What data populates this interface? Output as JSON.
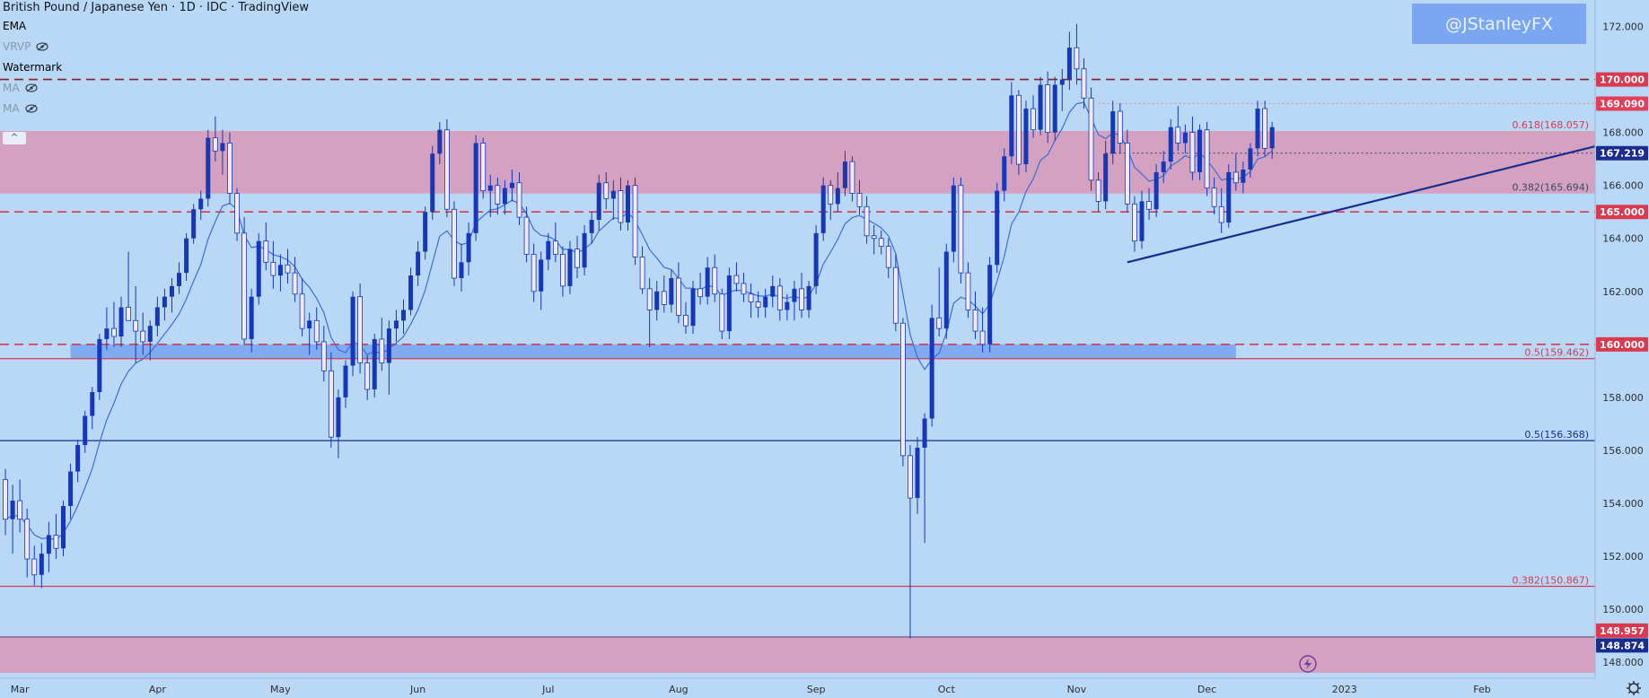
{
  "header": {
    "title": "British Pound / Japanese Yen · 1D · IDC · TradingView",
    "indicators": [
      {
        "label": "EMA",
        "dim": false,
        "hidden": false
      },
      {
        "label": "VRVP",
        "dim": true,
        "hidden": true
      },
      {
        "label": "Watermark",
        "dim": false,
        "hidden": false
      },
      {
        "label": "MA",
        "dim": true,
        "hidden": true
      },
      {
        "label": "MA",
        "dim": true,
        "hidden": true
      }
    ],
    "collapse_glyph": "^"
  },
  "watermark": "@JStanleyFX",
  "colors": {
    "background": "#b9d8f5",
    "bull_candle": "#1537b8",
    "bear_candle": "#f4eaf7",
    "zone_pink": "#d59fbd",
    "zone_blue": "#7aa6f2",
    "ema": "#3a6fd6",
    "trendline": "#1a2d8f",
    "dash_red": "#d93a4f",
    "price_label_red": "#e2405a",
    "price_label_navy": "#1a2d8f"
  },
  "chart_data": {
    "type": "candlestick",
    "symbol": "British Pound / Japanese Yen",
    "timeframe": "1D",
    "ylim": [
      147.6,
      173.0
    ],
    "xlim": [
      0,
      220
    ],
    "y_ticks": [
      "148.000",
      "150.000",
      "152.000",
      "154.000",
      "156.000",
      "158.000",
      "160.000",
      "162.000",
      "164.000",
      "166.000",
      "168.000",
      "170.000",
      "172.000"
    ],
    "x_ticks": [
      {
        "label": "Mar",
        "x": 2
      },
      {
        "label": "Apr",
        "x": 21
      },
      {
        "label": "May",
        "x": 38
      },
      {
        "label": "Jun",
        "x": 57
      },
      {
        "label": "Jul",
        "x": 75
      },
      {
        "label": "Aug",
        "x": 93
      },
      {
        "label": "Sep",
        "x": 112
      },
      {
        "label": "Oct",
        "x": 130
      },
      {
        "label": "Nov",
        "x": 148
      },
      {
        "label": "Dec",
        "x": 166
      },
      {
        "label": "2023",
        "x": 185
      },
      {
        "label": "Feb",
        "x": 204
      }
    ],
    "zones": [
      {
        "from": 165.694,
        "to": 168.057,
        "color": "zone_pink"
      },
      {
        "from": 159.462,
        "to": 160.0,
        "x_start": 9,
        "x_end": 170,
        "color": "zone_blue"
      },
      {
        "from": 147.6,
        "to": 148.957,
        "color": "zone_pink"
      }
    ],
    "horizontal_lines": [
      {
        "price": 170.0,
        "style": "dashed",
        "color": "#8b1e2c"
      },
      {
        "price": 165.0,
        "style": "dashed",
        "color": "#d93a4f"
      },
      {
        "price": 160.0,
        "style": "dashed",
        "color": "#d93a4f"
      },
      {
        "price": 169.09,
        "style": "dotted",
        "color": "#d98fa3",
        "x_start": 151
      },
      {
        "price": 167.219,
        "style": "dotted",
        "color": "#4a4a6a",
        "x_start": 152
      },
      {
        "price": 159.462,
        "style": "solid",
        "color": "#d93a4f"
      },
      {
        "price": 156.368,
        "style": "solid",
        "color": "#1a2d8f"
      },
      {
        "price": 150.867,
        "style": "solid",
        "color": "#d93a4f"
      },
      {
        "price": 148.957,
        "style": "solid",
        "color": "#6a4a80"
      }
    ],
    "fib_labels": [
      {
        "text": "0.618(168.057)",
        "price": 168.057,
        "color": "#d93a4f"
      },
      {
        "text": "0.382(165.694)",
        "price": 165.694,
        "color": "#3a4a6a"
      },
      {
        "text": "0.5(159.462)",
        "price": 159.462,
        "color": "#d93a4f"
      },
      {
        "text": "0.5(156.368)",
        "price": 156.368,
        "color": "#1a2d8f"
      },
      {
        "text": "0.382(150.867)",
        "price": 150.867,
        "color": "#d93a4f"
      }
    ],
    "price_labels": [
      {
        "text": "170.000",
        "price": 170.0,
        "bg": "#d93a4f"
      },
      {
        "text": "169.090",
        "price": 169.09,
        "bg": "#e2405a"
      },
      {
        "text": "167.219",
        "price": 167.219,
        "bg": "#1a2d8f"
      },
      {
        "text": "165.000",
        "price": 165.0,
        "bg": "#d93a4f"
      },
      {
        "text": "160.000",
        "price": 160.0,
        "bg": "#d93a4f"
      },
      {
        "text": "148.957",
        "price": 148.957,
        "bg": "#d93a4f"
      },
      {
        "text": "148.874",
        "price": 148.874,
        "bg": "#1a2d8f"
      }
    ],
    "trendline": {
      "x1": 155,
      "y1": 163.1,
      "x2": 220,
      "y2": 167.5
    },
    "ema_period": 9,
    "candles": [
      [
        154.9,
        155.3,
        152.8,
        153.4
      ],
      [
        153.4,
        154.7,
        152.1,
        154.1
      ],
      [
        154.1,
        154.9,
        152.9,
        153.4
      ],
      [
        153.4,
        153.8,
        151.2,
        151.9
      ],
      [
        151.9,
        152.4,
        150.9,
        151.3
      ],
      [
        151.3,
        152.5,
        150.8,
        152.1
      ],
      [
        152.1,
        153.3,
        151.4,
        152.8
      ],
      [
        152.8,
        153.6,
        151.9,
        152.3
      ],
      [
        152.3,
        154.1,
        152.0,
        153.9
      ],
      [
        153.9,
        155.5,
        153.4,
        155.2
      ],
      [
        155.2,
        156.4,
        154.8,
        156.2
      ],
      [
        156.2,
        157.5,
        155.9,
        157.3
      ],
      [
        157.3,
        158.4,
        156.8,
        158.2
      ],
      [
        158.2,
        160.4,
        157.9,
        160.2
      ],
      [
        160.2,
        161.4,
        159.8,
        160.6
      ],
      [
        160.6,
        161.6,
        159.9,
        160.3
      ],
      [
        160.3,
        161.8,
        159.9,
        161.4
      ],
      [
        161.4,
        163.5,
        160.9,
        160.9
      ],
      [
        160.9,
        162.2,
        159.3,
        160.5
      ],
      [
        160.5,
        161.2,
        159.6,
        160.1
      ],
      [
        160.1,
        160.9,
        159.4,
        160.7
      ],
      [
        160.7,
        161.8,
        160.3,
        161.4
      ],
      [
        161.4,
        162.1,
        160.9,
        161.8
      ],
      [
        161.8,
        162.5,
        161.2,
        162.2
      ],
      [
        162.2,
        163.1,
        161.9,
        162.7
      ],
      [
        162.7,
        164.2,
        162.4,
        164.0
      ],
      [
        164.0,
        165.3,
        163.8,
        165.1
      ],
      [
        165.1,
        165.8,
        164.7,
        165.5
      ],
      [
        165.5,
        168.1,
        165.2,
        167.8
      ],
      [
        167.8,
        168.6,
        166.9,
        167.3
      ],
      [
        167.3,
        168.1,
        166.4,
        167.6
      ],
      [
        167.6,
        168.0,
        165.3,
        165.7
      ],
      [
        165.7,
        165.9,
        163.9,
        164.2
      ],
      [
        164.2,
        164.8,
        160.0,
        160.2
      ],
      [
        160.2,
        162.1,
        159.7,
        161.8
      ],
      [
        161.8,
        164.2,
        161.5,
        163.9
      ],
      [
        163.9,
        164.6,
        162.8,
        163.1
      ],
      [
        163.1,
        163.9,
        162.1,
        162.6
      ],
      [
        162.6,
        163.4,
        162.0,
        163.0
      ],
      [
        163.0,
        163.6,
        162.3,
        162.7
      ],
      [
        162.7,
        163.3,
        161.6,
        161.9
      ],
      [
        161.9,
        162.5,
        160.3,
        160.6
      ],
      [
        160.6,
        161.2,
        159.6,
        160.9
      ],
      [
        160.9,
        161.4,
        159.8,
        160.1
      ],
      [
        160.1,
        160.7,
        158.6,
        159.0
      ],
      [
        159.0,
        159.7,
        156.1,
        156.5
      ],
      [
        156.5,
        158.3,
        155.7,
        158.0
      ],
      [
        158.0,
        159.4,
        157.6,
        159.2
      ],
      [
        159.2,
        162.0,
        158.8,
        161.8
      ],
      [
        161.8,
        162.3,
        158.9,
        159.3
      ],
      [
        159.3,
        159.6,
        157.9,
        158.3
      ],
      [
        158.3,
        160.4,
        158.0,
        160.2
      ],
      [
        160.2,
        161.0,
        159.0,
        159.3
      ],
      [
        159.3,
        160.9,
        158.1,
        160.6
      ],
      [
        160.6,
        161.3,
        160.1,
        160.9
      ],
      [
        160.9,
        161.7,
        160.4,
        161.3
      ],
      [
        161.3,
        162.9,
        161.1,
        162.6
      ],
      [
        162.6,
        163.9,
        162.2,
        163.5
      ],
      [
        163.5,
        165.2,
        163.2,
        165.0
      ],
      [
        165.0,
        167.5,
        164.7,
        167.2
      ],
      [
        167.2,
        168.4,
        166.8,
        168.1
      ],
      [
        168.1,
        168.5,
        164.8,
        165.1
      ],
      [
        165.1,
        165.4,
        162.2,
        162.5
      ],
      [
        162.5,
        163.8,
        162.0,
        163.1
      ],
      [
        163.1,
        164.6,
        162.6,
        164.2
      ],
      [
        164.2,
        167.9,
        163.9,
        167.6
      ],
      [
        167.6,
        167.8,
        165.5,
        165.8
      ],
      [
        165.8,
        166.4,
        164.8,
        166.0
      ],
      [
        166.0,
        166.3,
        164.9,
        165.3
      ],
      [
        165.3,
        166.2,
        164.9,
        165.9
      ],
      [
        165.9,
        166.6,
        165.4,
        166.1
      ],
      [
        166.1,
        166.5,
        164.5,
        164.8
      ],
      [
        164.8,
        165.2,
        163.1,
        163.4
      ],
      [
        163.4,
        163.8,
        161.6,
        162.0
      ],
      [
        162.0,
        163.5,
        161.3,
        163.2
      ],
      [
        163.2,
        164.2,
        162.8,
        163.9
      ],
      [
        163.9,
        164.6,
        163.1,
        163.4
      ],
      [
        163.4,
        163.7,
        161.8,
        162.2
      ],
      [
        162.2,
        163.9,
        161.9,
        163.6
      ],
      [
        163.6,
        164.1,
        162.5,
        162.9
      ],
      [
        162.9,
        164.5,
        162.6,
        164.2
      ],
      [
        164.2,
        165.0,
        163.8,
        164.7
      ],
      [
        164.7,
        166.4,
        164.3,
        166.1
      ],
      [
        166.1,
        166.5,
        165.1,
        165.5
      ],
      [
        165.5,
        166.2,
        164.7,
        165.8
      ],
      [
        165.8,
        166.3,
        164.3,
        164.6
      ],
      [
        164.6,
        166.2,
        164.3,
        166.0
      ],
      [
        166.0,
        166.3,
        163.0,
        163.3
      ],
      [
        163.3,
        163.7,
        161.9,
        162.1
      ],
      [
        162.1,
        162.5,
        159.9,
        161.3
      ],
      [
        161.3,
        162.4,
        160.9,
        162.0
      ],
      [
        162.0,
        162.6,
        161.2,
        161.5
      ],
      [
        161.5,
        162.8,
        161.2,
        162.5
      ],
      [
        162.5,
        163.1,
        160.8,
        161.1
      ],
      [
        161.1,
        161.6,
        160.4,
        160.7
      ],
      [
        160.7,
        162.4,
        160.4,
        162.1
      ],
      [
        162.1,
        162.7,
        161.5,
        161.8
      ],
      [
        161.8,
        163.3,
        161.5,
        162.9
      ],
      [
        162.9,
        163.4,
        161.6,
        161.9
      ],
      [
        161.9,
        162.1,
        160.2,
        160.5
      ],
      [
        160.5,
        162.9,
        160.2,
        162.6
      ],
      [
        162.6,
        163.1,
        162.0,
        162.3
      ],
      [
        162.3,
        162.7,
        161.6,
        161.9
      ],
      [
        161.9,
        162.3,
        161.0,
        161.6
      ],
      [
        161.6,
        162.0,
        161.0,
        161.4
      ],
      [
        161.4,
        162.1,
        161.0,
        161.8
      ],
      [
        161.8,
        162.6,
        161.4,
        162.2
      ],
      [
        162.2,
        162.5,
        160.9,
        161.3
      ],
      [
        161.3,
        161.9,
        160.9,
        161.6
      ],
      [
        161.6,
        162.4,
        160.9,
        162.1
      ],
      [
        162.1,
        162.7,
        161.0,
        161.3
      ],
      [
        161.3,
        162.4,
        161.0,
        162.2
      ],
      [
        162.2,
        164.5,
        161.9,
        164.2
      ],
      [
        164.2,
        166.3,
        163.9,
        166.0
      ],
      [
        166.0,
        166.2,
        164.7,
        165.3
      ],
      [
        165.3,
        166.5,
        165.0,
        165.9
      ],
      [
        165.9,
        167.3,
        165.6,
        166.9
      ],
      [
        166.9,
        167.1,
        165.4,
        165.7
      ],
      [
        165.7,
        166.2,
        164.9,
        165.2
      ],
      [
        165.2,
        165.6,
        163.8,
        164.1
      ],
      [
        164.1,
        164.5,
        163.4,
        164.0
      ],
      [
        164.0,
        164.3,
        163.4,
        163.7
      ],
      [
        163.7,
        164.0,
        162.5,
        162.9
      ],
      [
        162.9,
        163.4,
        160.5,
        160.8
      ],
      [
        160.8,
        161.0,
        155.4,
        155.8
      ],
      [
        155.8,
        156.2,
        148.9,
        154.2
      ],
      [
        154.2,
        156.5,
        153.6,
        156.1
      ],
      [
        156.1,
        157.4,
        152.5,
        157.2
      ],
      [
        157.2,
        161.5,
        156.9,
        161.0
      ],
      [
        161.0,
        162.9,
        160.3,
        160.6
      ],
      [
        160.6,
        163.8,
        160.2,
        163.5
      ],
      [
        163.5,
        166.3,
        163.1,
        166.0
      ],
      [
        166.0,
        166.3,
        162.3,
        162.7
      ],
      [
        162.7,
        163.1,
        161.0,
        161.3
      ],
      [
        161.3,
        162.0,
        160.2,
        160.5
      ],
      [
        160.5,
        161.4,
        159.7,
        160.0
      ],
      [
        160.0,
        163.3,
        159.7,
        163.0
      ],
      [
        163.0,
        166.1,
        162.7,
        165.8
      ],
      [
        165.8,
        167.4,
        165.4,
        167.1
      ],
      [
        167.1,
        169.9,
        166.8,
        169.4
      ],
      [
        169.4,
        169.6,
        166.4,
        166.8
      ],
      [
        166.8,
        169.2,
        166.5,
        168.9
      ],
      [
        168.9,
        169.4,
        167.8,
        168.1
      ],
      [
        168.1,
        170.1,
        167.9,
        169.8
      ],
      [
        169.8,
        170.3,
        167.6,
        168.0
      ],
      [
        168.0,
        170.1,
        167.7,
        169.8
      ],
      [
        169.8,
        170.4,
        168.8,
        170.0
      ],
      [
        170.0,
        171.8,
        169.6,
        171.2
      ],
      [
        171.2,
        172.1,
        169.8,
        170.4
      ],
      [
        170.4,
        170.8,
        168.9,
        169.3
      ],
      [
        169.3,
        169.7,
        165.8,
        166.2
      ],
      [
        166.2,
        166.5,
        165.0,
        165.4
      ],
      [
        165.4,
        167.7,
        165.1,
        167.2
      ],
      [
        167.2,
        169.2,
        166.8,
        168.8
      ],
      [
        168.8,
        169.1,
        167.2,
        167.6
      ],
      [
        167.6,
        168.1,
        165.0,
        165.3
      ],
      [
        165.3,
        165.6,
        163.5,
        163.9
      ],
      [
        163.9,
        165.8,
        163.6,
        165.4
      ],
      [
        165.4,
        165.9,
        164.7,
        165.1
      ],
      [
        165.1,
        166.8,
        164.8,
        166.5
      ],
      [
        166.5,
        167.3,
        166.1,
        166.9
      ],
      [
        166.9,
        168.5,
        166.6,
        168.2
      ],
      [
        168.2,
        169.0,
        167.3,
        167.6
      ],
      [
        167.6,
        168.3,
        167.2,
        168.0
      ],
      [
        168.0,
        168.6,
        166.2,
        166.5
      ],
      [
        166.5,
        168.3,
        166.2,
        168.1
      ],
      [
        168.1,
        168.4,
        165.6,
        165.9
      ],
      [
        165.9,
        166.3,
        164.9,
        165.2
      ],
      [
        165.2,
        165.9,
        164.2,
        164.6
      ],
      [
        164.6,
        166.8,
        164.4,
        166.5
      ],
      [
        166.5,
        167.2,
        165.8,
        166.1
      ],
      [
        166.1,
        166.9,
        165.7,
        166.6
      ],
      [
        166.6,
        167.6,
        166.3,
        167.4
      ],
      [
        167.4,
        169.2,
        167.1,
        168.9
      ],
      [
        168.9,
        169.2,
        167.1,
        167.4
      ],
      [
        167.4,
        168.4,
        167.0,
        168.2
      ]
    ]
  }
}
